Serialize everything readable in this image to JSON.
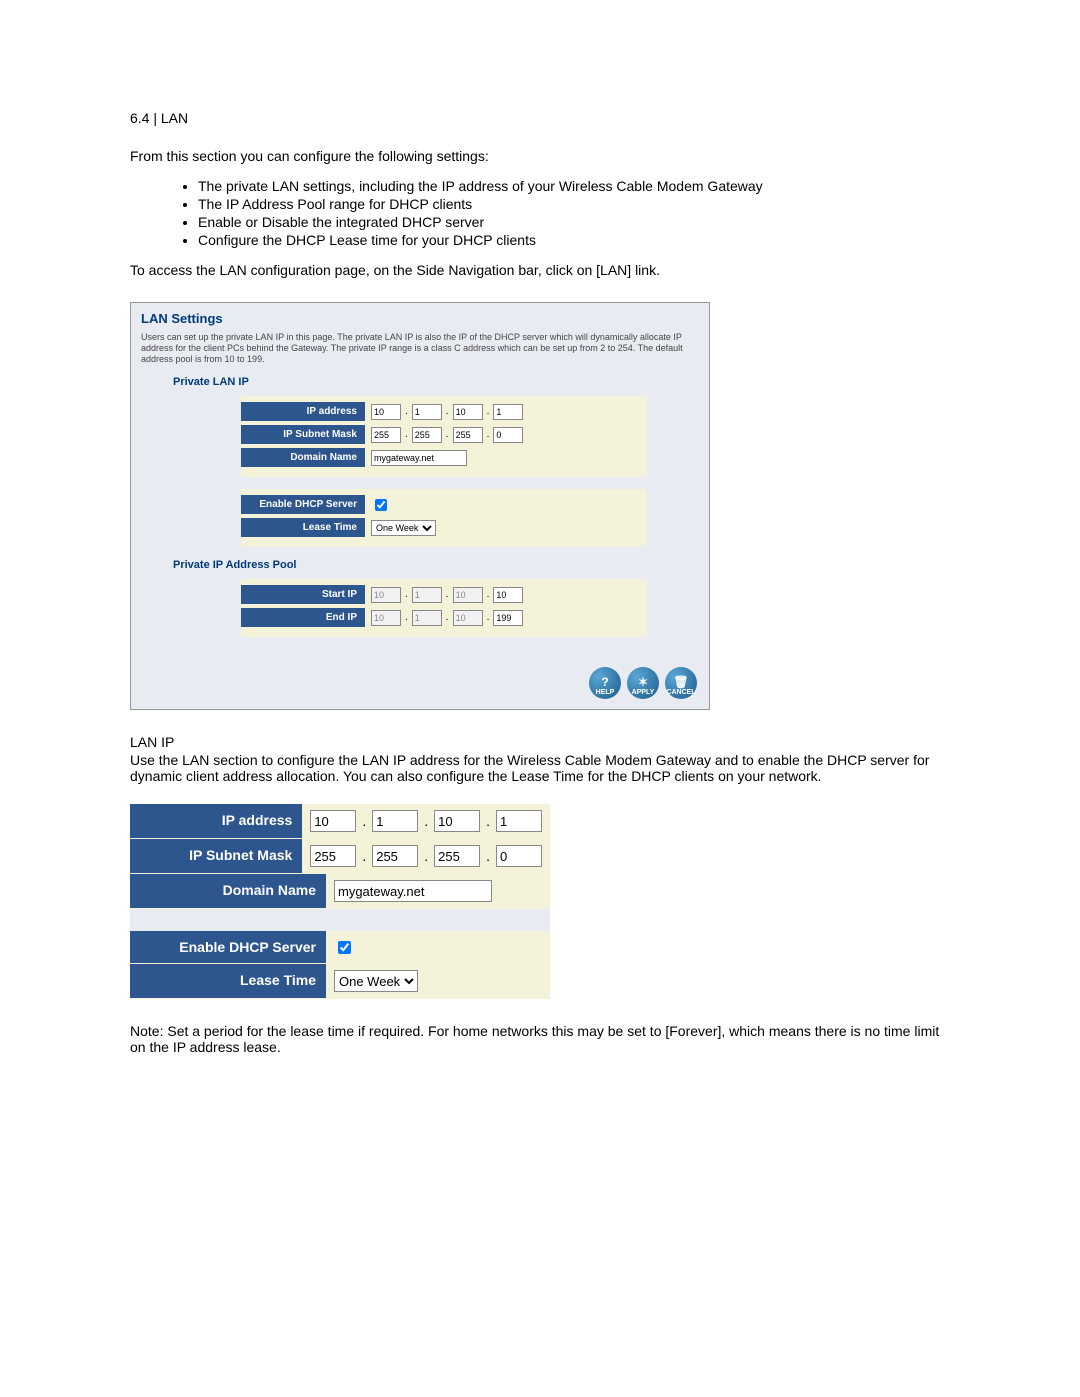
{
  "heading": "6.4  |  LAN",
  "intro": "From this section you can configure the following settings:",
  "bullets": [
    "The private LAN settings, including the IP address of your Wireless Cable Modem Gateway",
    "The IP Address Pool range for DHCP clients",
    "Enable or Disable the integrated DHCP server",
    "Configure the DHCP Lease time for your DHCP clients"
  ],
  "access_text": "To access the LAN configuration page, on the Side Navigation bar, click on [LAN] link.",
  "panel": {
    "title": "LAN Settings",
    "desc": "Users can set up the private LAN IP in this page. The private LAN IP is also the IP of the DHCP server which will dynamically allocate IP address for the client PCs behind the Gateway. The private IP range is a class C address which can be set up from 2 to 254. The default address pool is from 10 to 199.",
    "sub1": "Private LAN IP",
    "rows1": {
      "ip_label": "IP address",
      "ip": [
        "10",
        "1",
        "10",
        "1"
      ],
      "mask_label": "IP Subnet Mask",
      "mask": [
        "255",
        "255",
        "255",
        "0"
      ],
      "domain_label": "Domain Name",
      "domain": "mygateway.net",
      "dhcp_label": "Enable DHCP Server",
      "dhcp_checked": true,
      "lease_label": "Lease Time",
      "lease": "One Week"
    },
    "sub2": "Private IP Address Pool",
    "rows2": {
      "start_label": "Start IP",
      "start": [
        "10",
        "1",
        "10",
        "10"
      ],
      "end_label": "End IP",
      "end": [
        "10",
        "1",
        "10",
        "199"
      ]
    },
    "buttons": {
      "help": "HELP",
      "apply": "APPLY",
      "cancel": "CANCEL"
    }
  },
  "lanip_heading": "LAN IP",
  "lanip_text": "Use the LAN section to configure the LAN IP address for the Wireless Cable Modem Gateway and to enable the DHCP server for dynamic client address allocation. You can also configure the Lease Time for the DHCP clients on your network.",
  "detail": {
    "ip_label": "IP address",
    "ip": [
      "10",
      "1",
      "10",
      "1"
    ],
    "mask_label": "IP Subnet Mask",
    "mask": [
      "255",
      "255",
      "255",
      "0"
    ],
    "domain_label": "Domain Name",
    "domain": "mygateway.net",
    "dhcp_label": "Enable DHCP Server",
    "dhcp_checked": true,
    "lease_label": "Lease Time",
    "lease": "One Week"
  },
  "note": "Note: Set a period for the lease time if required. For home networks this may be set to [Forever], which means there is no time limit on the IP address lease."
}
